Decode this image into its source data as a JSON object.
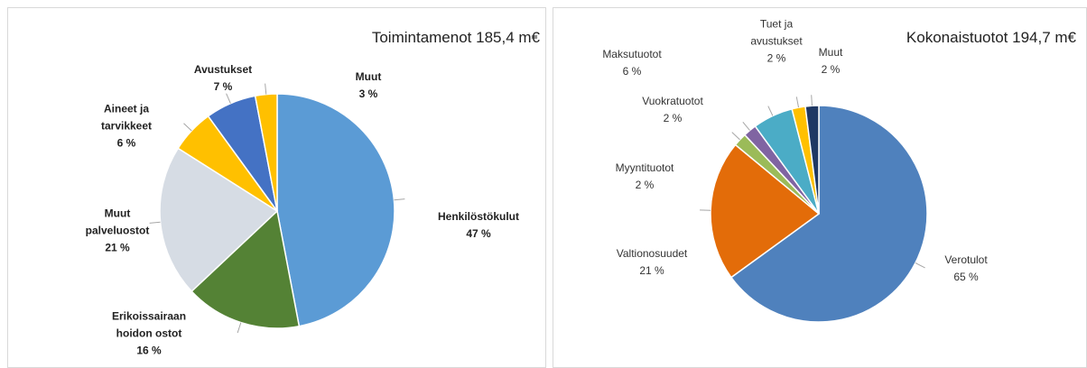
{
  "chart_data": [
    {
      "type": "pie",
      "title": "Toimintamenot 185,4 m€",
      "categories": [
        "Henkilöstökulut",
        "Erikoissairaan\nhoidon ostot",
        "Muut\npalveluostot",
        "Aineet ja\ntarvikkeet",
        "Avustukset",
        "Muut"
      ],
      "values": [
        47,
        16,
        21,
        6,
        7,
        3
      ],
      "value_labels": [
        "47 %",
        "16 %",
        "21 %",
        "6 %",
        "7 %",
        "3 %"
      ],
      "colors": [
        "#5b9bd5",
        "#548235",
        "#d6dce4",
        "#ffc000",
        "#4472c4",
        "#ffc000"
      ]
    },
    {
      "type": "pie",
      "title": "Kokonaistuotot 194,7 m€",
      "categories": [
        "Verotulot",
        "Valtionosuudet",
        "Myyntituotot",
        "Vuokratuotot",
        "Maksutuotot",
        "Tuet ja\navustukset",
        "Muut"
      ],
      "values": [
        65,
        21,
        2,
        2,
        6,
        2,
        2
      ],
      "value_labels": [
        "65 %",
        "21 %",
        "2 %",
        "2 %",
        "6 %",
        "2 %",
        "2 %"
      ],
      "colors": [
        "#4f81bd",
        "#e36c09",
        "#9bbb59",
        "#8064a2",
        "#4bacc6",
        "#ffc000",
        "#1f3864"
      ]
    }
  ]
}
